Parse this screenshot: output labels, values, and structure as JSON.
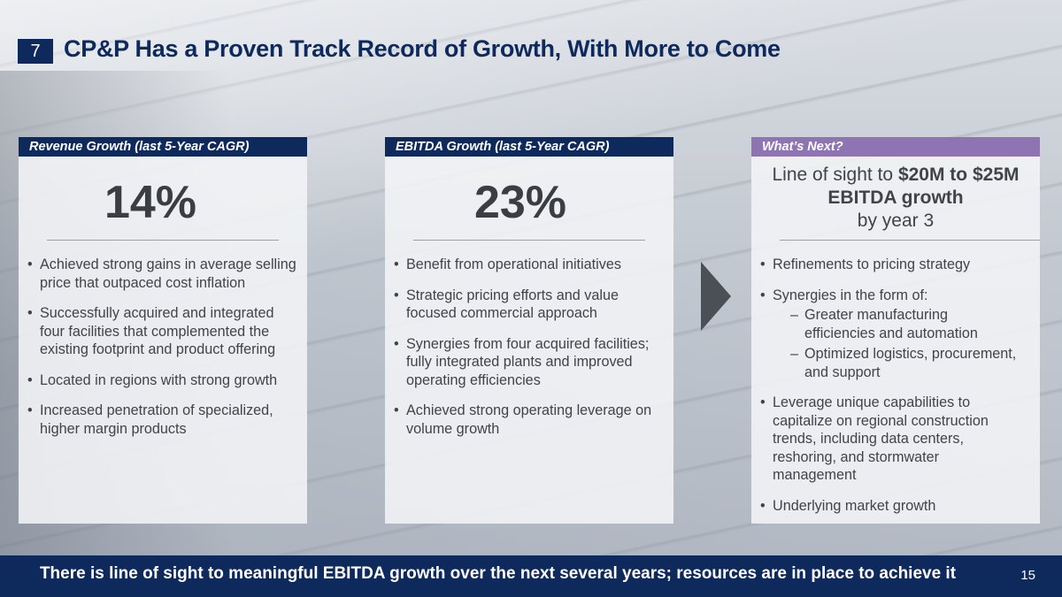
{
  "slide": {
    "section_number": "7",
    "title": "CP&P Has a Proven Track Record of Growth, With More to Come"
  },
  "panels": {
    "revenue": {
      "header": "Revenue Growth (last 5-Year CAGR)",
      "stat": "14%",
      "bullets": [
        "Achieved strong gains in average selling price that outpaced cost inflation",
        "Successfully acquired and integrated four facilities that complemented the existing footprint and product offering",
        "Located in regions with strong growth",
        "Increased penetration of specialized, higher margin products"
      ]
    },
    "ebitda": {
      "header": "EBITDA Growth (last 5-Year CAGR)",
      "stat": "23%",
      "bullets": [
        "Benefit from operational initiatives",
        "Strategic pricing efforts and value focused commercial approach",
        "Synergies from four acquired facilities; fully integrated plants and improved operating efficiencies",
        "Achieved strong operating leverage on volume growth"
      ]
    },
    "next": {
      "header": "What’s Next?",
      "stat_prefix": "Line of sight to ",
      "stat_bold": "$20M to $25M EBITDA growth",
      "stat_suffix": "by year 3",
      "bullet_1": "Refinements to pricing strategy",
      "bullet_2": "Synergies in the form of:",
      "sub_1": "Greater manufacturing efficiencies and automation",
      "sub_2": "Optimized logistics, procurement, and support",
      "bullet_3": "Leverage unique capabilities to capitalize on regional construction trends, including data centers, reshoring, and stormwater management",
      "bullet_4": "Underlying market growth"
    }
  },
  "footer": {
    "text": "There is line of sight to meaningful EBITDA growth over the next several years; resources are in place to achieve it",
    "page_number": "15"
  },
  "colors": {
    "navy": "#0e2a5c",
    "purple": "#8f74b3"
  }
}
